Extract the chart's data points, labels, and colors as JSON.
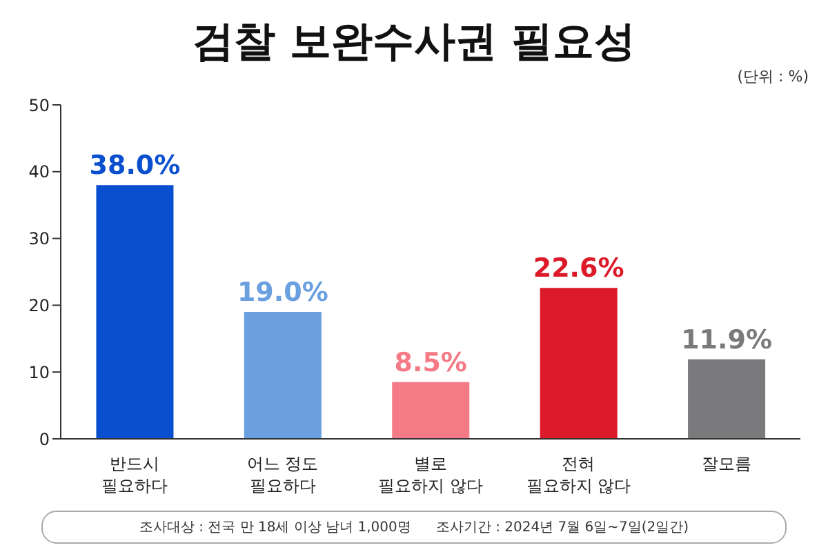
{
  "chart_data": {
    "type": "bar",
    "title": "검찰 보완수사권 필요성",
    "subtitle": "(단위 : %)",
    "categories": [
      "반드시\n필요하다",
      "어느 정도\n필요하다",
      "별로\n필요하지 않다",
      "전혀\n필요하지 않다",
      "잘모름"
    ],
    "values": [
      38.0,
      19.0,
      8.5,
      22.6,
      11.9
    ],
    "colors": [
      "#0a4fcf",
      "#6a9fe0",
      "#f47a86",
      "#dc1a2a",
      "#7a7a7c"
    ],
    "value_labels": [
      "38.0%",
      "19.0%",
      "8.5%",
      "22.6%",
      "11.9%"
    ],
    "ylim": [
      0,
      50
    ],
    "yticks": [
      0,
      10,
      20,
      30,
      40,
      50
    ],
    "grid": false,
    "legend": false,
    "annotations": [
      "조사대상 : 전국 만 18세 이상 남녀 1,000명",
      "조사기간 : 2024년 7월 6일~7일(2일간)"
    ]
  }
}
